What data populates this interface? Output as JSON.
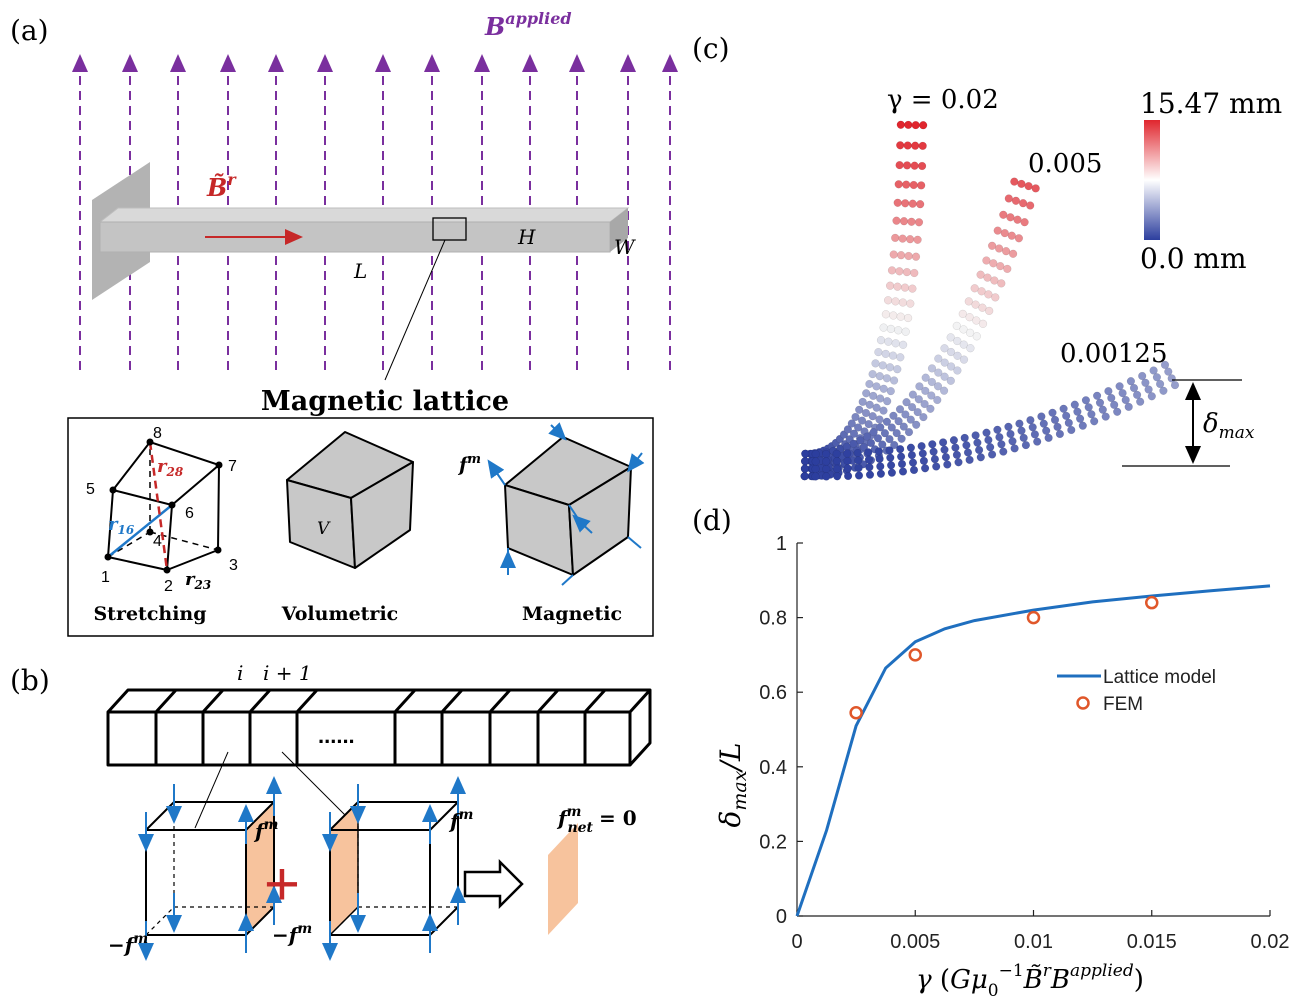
{
  "panel_labels": {
    "a": "(a)",
    "b": "(b)",
    "c": "(c)",
    "d": "(d)"
  },
  "panel_a": {
    "field_label_base": "B",
    "field_label_sup": "applied",
    "remanence_label": "B̃",
    "remanence_sup": "r",
    "dims": {
      "L": "L",
      "H": "H",
      "W": "W"
    },
    "lattice_title": "Magnetic lattice",
    "stretching": {
      "caption": "Stretching",
      "nodes": [
        "1",
        "2",
        "3",
        "4",
        "5",
        "6",
        "7",
        "8"
      ],
      "r16": "r",
      "r16_sub": "16",
      "r28": "r",
      "r28_sub": "28",
      "r23": "r",
      "r23_sub": "23"
    },
    "volumetric": {
      "caption": "Volumetric",
      "v_label": "V"
    },
    "magnetic": {
      "caption": "Magnetic",
      "f_label": "f",
      "f_sup": "m"
    }
  },
  "panel_b": {
    "index_i": "i",
    "index_i1": "i + 1",
    "ellipsis": "......",
    "f_label": "f",
    "f_sup": "m",
    "neg_f_label": "−f",
    "neg_f_sup": "m",
    "net_label": "f",
    "net_sup": "m",
    "net_sub": "net",
    "net_eq": "= 0",
    "plus": "+"
  },
  "panel_c": {
    "gamma_labels": [
      "γ = 0.02",
      "0.005",
      "0.00125"
    ],
    "colorbar_max": "15.47 mm",
    "colorbar_min": "0.0 mm",
    "delta_label": "δ",
    "delta_sub": "max",
    "colors": {
      "max": "#e0262e",
      "mid": "#ffffff",
      "min": "#2c3e9e"
    }
  },
  "chart_data": {
    "type": "line",
    "xlabel": "γ (Gμ₀⁻¹B̃ʳBᵃᵖᵖˡⁱᵉᵈ)",
    "ylabel": "δmax/L",
    "xlim": [
      0,
      0.02
    ],
    "ylim": [
      0,
      1
    ],
    "xticks": [
      "0",
      "0.005",
      "0.01",
      "0.015",
      "0.02"
    ],
    "yticks": [
      "0",
      "0.2",
      "0.4",
      "0.6",
      "0.8",
      "1"
    ],
    "legend_position": "center-right",
    "series": [
      {
        "name": "Lattice model",
        "style": "line",
        "color": "#1f6fbf",
        "x": [
          0,
          0.00125,
          0.0025,
          0.00375,
          0.005,
          0.00625,
          0.0075,
          0.01,
          0.0125,
          0.015,
          0.0175,
          0.02
        ],
        "y": [
          0,
          0.23,
          0.51,
          0.665,
          0.735,
          0.77,
          0.792,
          0.82,
          0.842,
          0.858,
          0.872,
          0.885
        ]
      },
      {
        "name": "FEM",
        "style": "marker",
        "color": "#e0572a",
        "x": [
          0.0025,
          0.005,
          0.01,
          0.015
        ],
        "y": [
          0.545,
          0.7,
          0.8,
          0.84
        ]
      }
    ]
  }
}
